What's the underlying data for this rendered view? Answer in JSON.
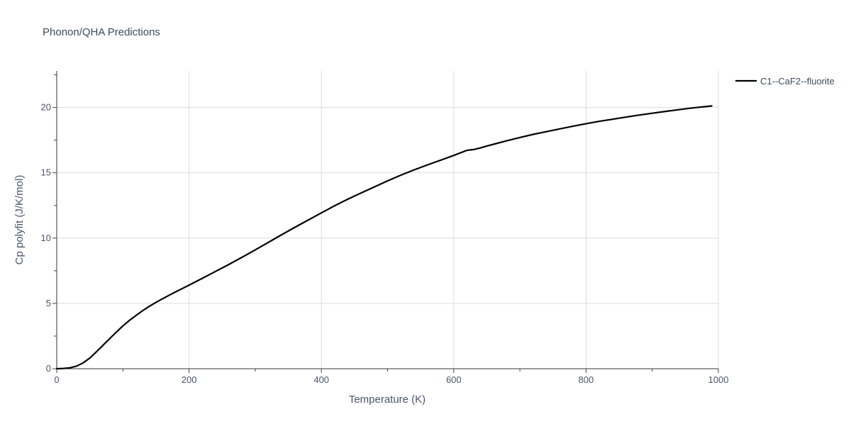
{
  "chart_data": {
    "type": "line",
    "title": "Phonon/QHA Predictions",
    "xlabel": "Temperature (K)",
    "ylabel": "Cp polyfit (J/K/mol)",
    "xlim": [
      0,
      1000
    ],
    "ylim": [
      0,
      22.8
    ],
    "xticks": [
      0,
      200,
      400,
      600,
      800,
      1000
    ],
    "yticks": [
      0,
      5,
      10,
      15,
      20
    ],
    "grid": true,
    "legend_position": "top-right",
    "series": [
      {
        "name": "C1--CaF2--fluorite",
        "color": "#000000",
        "x": [
          0,
          10,
          20,
          30,
          40,
          50,
          60,
          70,
          80,
          90,
          100,
          110,
          120,
          130,
          140,
          150,
          160,
          170,
          180,
          200,
          220,
          240,
          260,
          280,
          300,
          320,
          340,
          360,
          380,
          400,
          420,
          440,
          460,
          480,
          500,
          520,
          540,
          560,
          580,
          600,
          620,
          630,
          640,
          650,
          660,
          680,
          700,
          720,
          740,
          760,
          780,
          800,
          820,
          840,
          860,
          880,
          900,
          920,
          940,
          960,
          990
        ],
        "y": [
          0,
          0.02,
          0.07,
          0.2,
          0.45,
          0.82,
          1.3,
          1.8,
          2.3,
          2.8,
          3.28,
          3.7,
          4.08,
          4.45,
          4.78,
          5.08,
          5.36,
          5.63,
          5.89,
          6.4,
          6.92,
          7.45,
          7.98,
          8.53,
          9.1,
          9.68,
          10.26,
          10.83,
          11.38,
          11.93,
          12.48,
          12.98,
          13.46,
          13.92,
          14.38,
          14.82,
          15.22,
          15.6,
          15.96,
          16.33,
          16.72,
          16.78,
          16.9,
          17.05,
          17.18,
          17.45,
          17.7,
          17.94,
          18.15,
          18.36,
          18.56,
          18.76,
          18.94,
          19.1,
          19.26,
          19.42,
          19.56,
          19.7,
          19.83,
          19.96,
          20.12
        ]
      }
    ]
  }
}
